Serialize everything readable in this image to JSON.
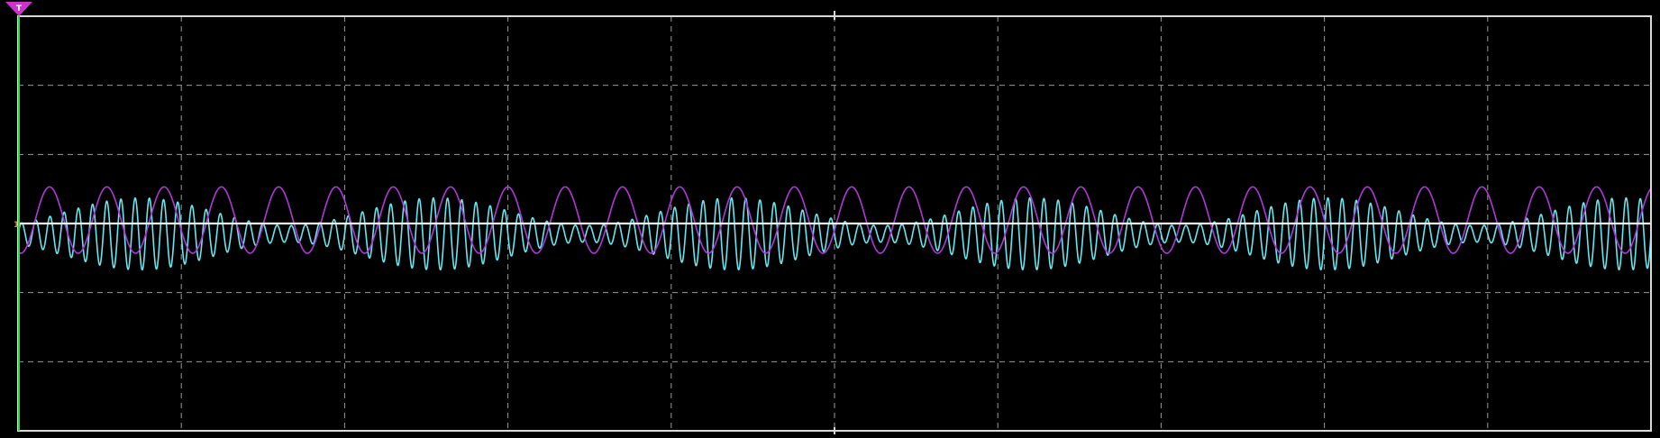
{
  "chart_data": {
    "type": "line",
    "title": "",
    "xlabel": "",
    "ylabel": "",
    "grid": true,
    "x_divisions": 10,
    "y_divisions": 6,
    "xlim": [
      0,
      10
    ],
    "ylim": [
      -3,
      3
    ],
    "trigger_marker": {
      "label": "T",
      "color": "#cc33cc"
    },
    "channel_marker": {
      "label": "1",
      "color": "#cc8844"
    },
    "series": [
      {
        "kind": "am-carrier",
        "color": "#66e6ee",
        "offset": -0.15,
        "carrier_cycles_per_div": 11.5,
        "envelope_cycles_per_div": 0.55,
        "envelope_min": 0.12,
        "envelope_max": 0.52,
        "envelope_phase": 3.7
      },
      {
        "kind": "sine",
        "color": "#b038d8",
        "offset": 0.05,
        "amplitude": 0.48,
        "cycles_per_div": 2.85,
        "phase": 4.4
      },
      {
        "kind": "baseline",
        "color": "#f2f2f2",
        "level": 0.0
      }
    ]
  }
}
